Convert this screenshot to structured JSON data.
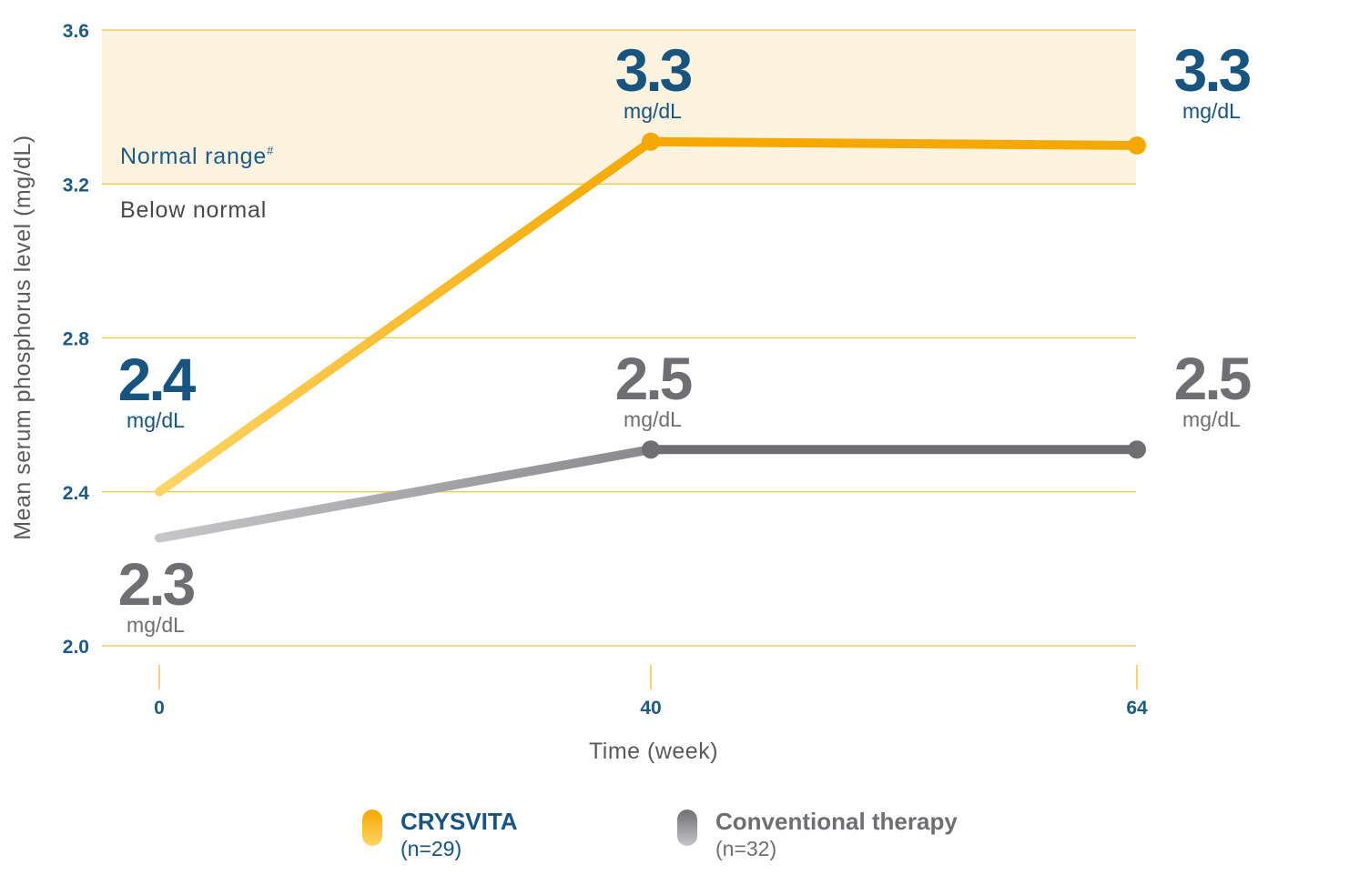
{
  "chart_data": {
    "type": "line",
    "xlabel": "Time (week)",
    "ylabel": "Mean serum phosphorus level (mg/dL)",
    "x": [
      0,
      40,
      64
    ],
    "x_ticks": [
      "0",
      "40",
      "64"
    ],
    "ylim": [
      2.0,
      3.6
    ],
    "y_ticks": [
      "2.0",
      "2.4",
      "2.8",
      "3.2",
      "3.6"
    ],
    "grid": true,
    "normal_range": {
      "from": 3.2,
      "to": 3.6,
      "label": "Normal range",
      "marker": "#",
      "below_label": "Below normal"
    },
    "series": [
      {
        "name": "CRYSVITA",
        "n": "(n=29)",
        "values": [
          2.4,
          3.31,
          3.3
        ],
        "labels": [
          "2.4",
          "3.3",
          "3.3"
        ],
        "unit": "mg/dL",
        "color": "#f5a800",
        "label_color": "#17547f",
        "start_color": "#ffd466"
      },
      {
        "name": "Conventional therapy",
        "n": "(n=32)",
        "values": [
          2.28,
          2.51,
          2.51
        ],
        "labels": [
          "2.3",
          "2.5",
          "2.5"
        ],
        "unit": "mg/dL",
        "color": "#6f6f73",
        "label_color": "#6f6f73",
        "start_color": "#c6c6c8"
      }
    ],
    "legend_position": "bottom"
  }
}
